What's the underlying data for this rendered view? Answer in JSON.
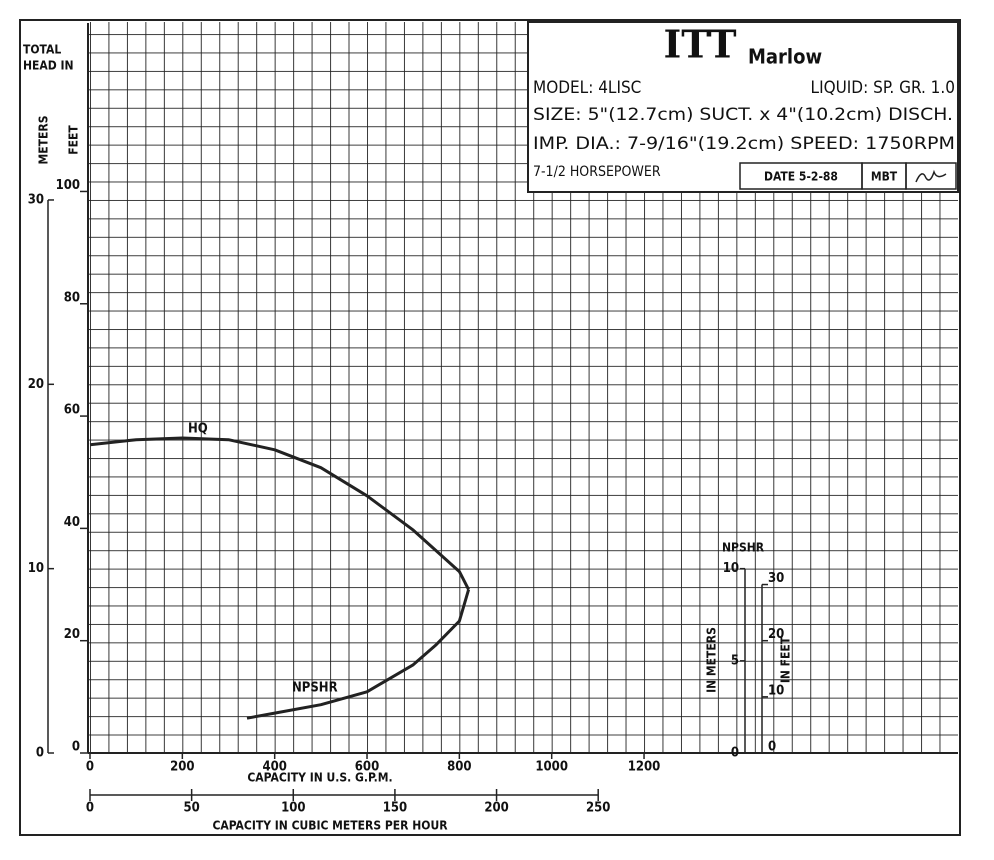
{
  "chart_data": {
    "type": "line",
    "title_block": {
      "logo": "ITT",
      "brand": "Marlow",
      "model": "MODEL: 4LISC",
      "liquid": "LIQUID: SP. GR. 1.0",
      "size": "SIZE: 5\"(12.7cm) SUCT. x 4\"(10.2cm) DISCH.",
      "imp_dia": "IMP. DIA.: 7-9/16\"(19.2cm) SPEED: 1750RPM",
      "horsepower": "7-1/2 HORSEPOWER",
      "date": "DATE 5-2-88",
      "by": "MBT"
    },
    "y_axis_title": [
      "TOTAL",
      "HEAD IN"
    ],
    "y2_label": "METERS",
    "y_label": "FEET",
    "x_label": "CAPACITY IN U.S. G.P.M.",
    "x2_label": "CAPACITY IN CUBIC METERS PER HOUR",
    "xlim": [
      0,
      1880
    ],
    "xticks": [
      0,
      200,
      400,
      600,
      800,
      1000,
      1200
    ],
    "x2lim": [
      0,
      427
    ],
    "x2ticks": [
      0,
      50,
      100,
      150,
      200,
      250
    ],
    "ylim": [
      0,
      130
    ],
    "yticks": [
      0,
      20,
      40,
      60,
      80,
      100
    ],
    "y2lim": [
      0,
      39.6
    ],
    "y2ticks": [
      0,
      10,
      20,
      30
    ],
    "grid": true,
    "npshr_axis": {
      "title": "NPSHR",
      "meters_label": "IN METERS",
      "feet_label": "IN FEET",
      "meter_ticks": [
        0,
        5,
        10
      ],
      "feet_ticks": [
        0,
        10,
        20,
        30
      ]
    },
    "series": [
      {
        "name": "HQ",
        "color": "#222222",
        "x": [
          0,
          100,
          200,
          300,
          400,
          500,
          600,
          700,
          800,
          820
        ],
        "values": [
          54.9,
          55.8,
          56.1,
          55.8,
          54,
          50.8,
          45.8,
          39.7,
          32.3,
          29.1
        ]
      },
      {
        "name": "NPSHR",
        "color": "#222222",
        "x": [
          340,
          400,
          500,
          600,
          700,
          750,
          800,
          820
        ],
        "values": [
          6.2,
          7.1,
          8.6,
          10.9,
          15.7,
          19.3,
          23.5,
          29.1
        ]
      }
    ]
  }
}
